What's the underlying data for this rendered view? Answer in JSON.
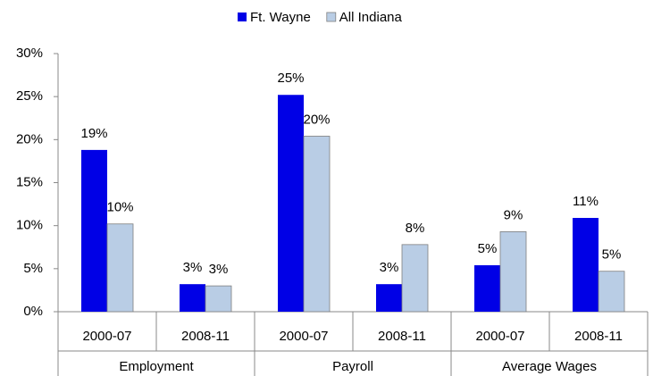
{
  "chart_data": {
    "type": "bar",
    "categories": [
      "2000-07",
      "2008-11",
      "2000-07",
      "2008-11",
      "2000-07",
      "2008-11"
    ],
    "category_groups": [
      "Employment",
      "Payroll",
      "Average Wages"
    ],
    "series": [
      {
        "name": "Ft. Wayne",
        "color": "#0000e6",
        "values": [
          18.8,
          3.2,
          25.2,
          3.2,
          5.4,
          10.9
        ],
        "value_labels": [
          "19%",
          "3%",
          "25%",
          "3%",
          "5%",
          "11%"
        ]
      },
      {
        "name": "All Indiana",
        "color": "#b9cde5",
        "values": [
          10.2,
          3.0,
          20.4,
          7.8,
          9.3,
          4.7
        ],
        "value_labels": [
          "10%",
          "3%",
          "20%",
          "8%",
          "9%",
          "5%"
        ]
      }
    ],
    "ylim": [
      0,
      30
    ],
    "yticks": [
      {
        "value": 0,
        "label": "0%"
      },
      {
        "value": 5,
        "label": "5%"
      },
      {
        "value": 10,
        "label": "10%"
      },
      {
        "value": 15,
        "label": "15%"
      },
      {
        "value": 20,
        "label": "20%"
      },
      {
        "value": 25,
        "label": "25%"
      },
      {
        "value": 30,
        "label": "30%"
      }
    ],
    "legend": "top"
  }
}
